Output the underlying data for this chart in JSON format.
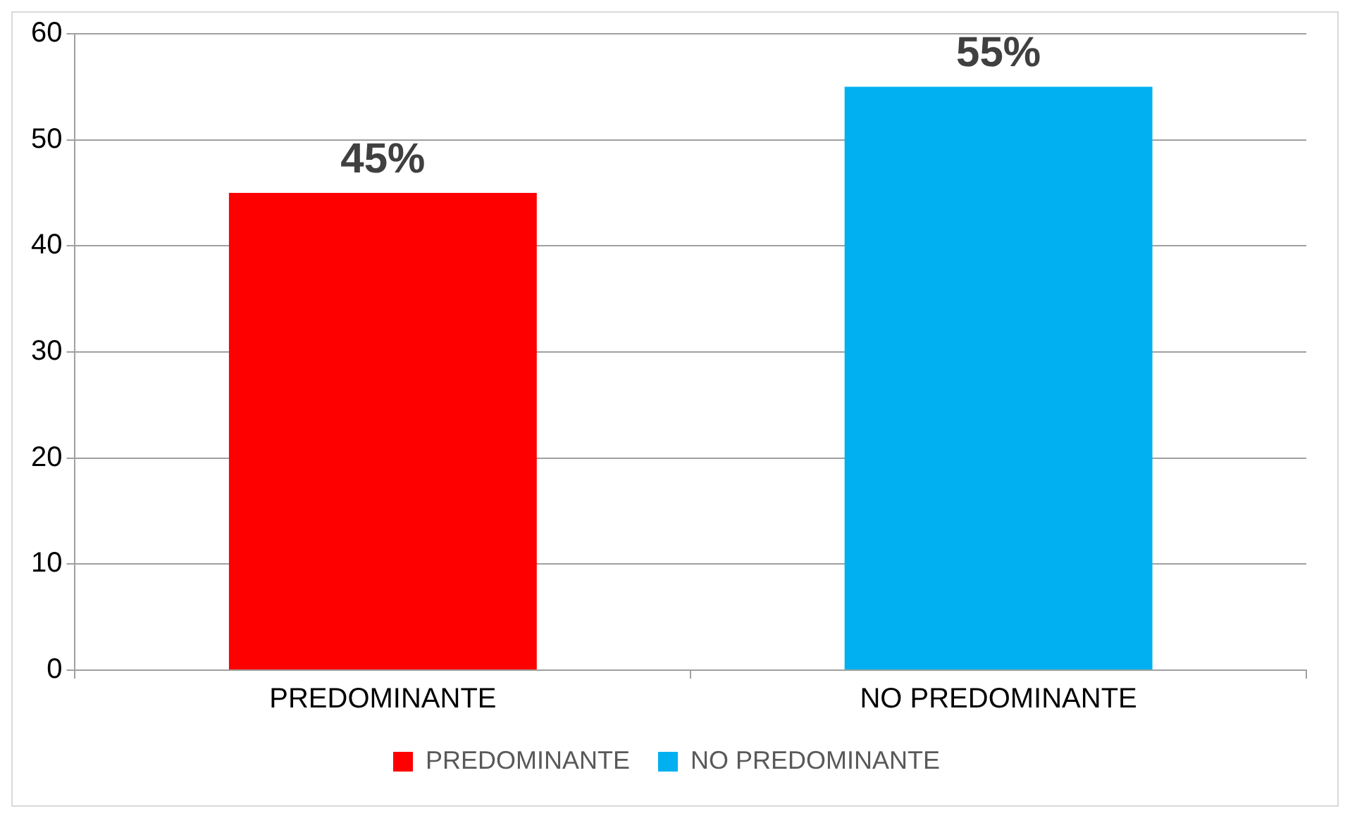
{
  "chart_data": {
    "type": "bar",
    "categories": [
      "PREDOMINANTE",
      "NO PREDOMINANTE"
    ],
    "series": [
      {
        "name": "PREDOMINANTE",
        "color": "#ff0000",
        "values": [
          45,
          null
        ],
        "value_labels": [
          "45%",
          null
        ]
      },
      {
        "name": "NO PREDOMINANTE",
        "color": "#00b0f0",
        "values": [
          null,
          55
        ],
        "value_labels": [
          null,
          "55%"
        ]
      }
    ],
    "ylim": [
      0,
      60
    ],
    "yticks": [
      0,
      10,
      20,
      30,
      40,
      50,
      60
    ],
    "grid": "y",
    "legend": "bottom"
  }
}
